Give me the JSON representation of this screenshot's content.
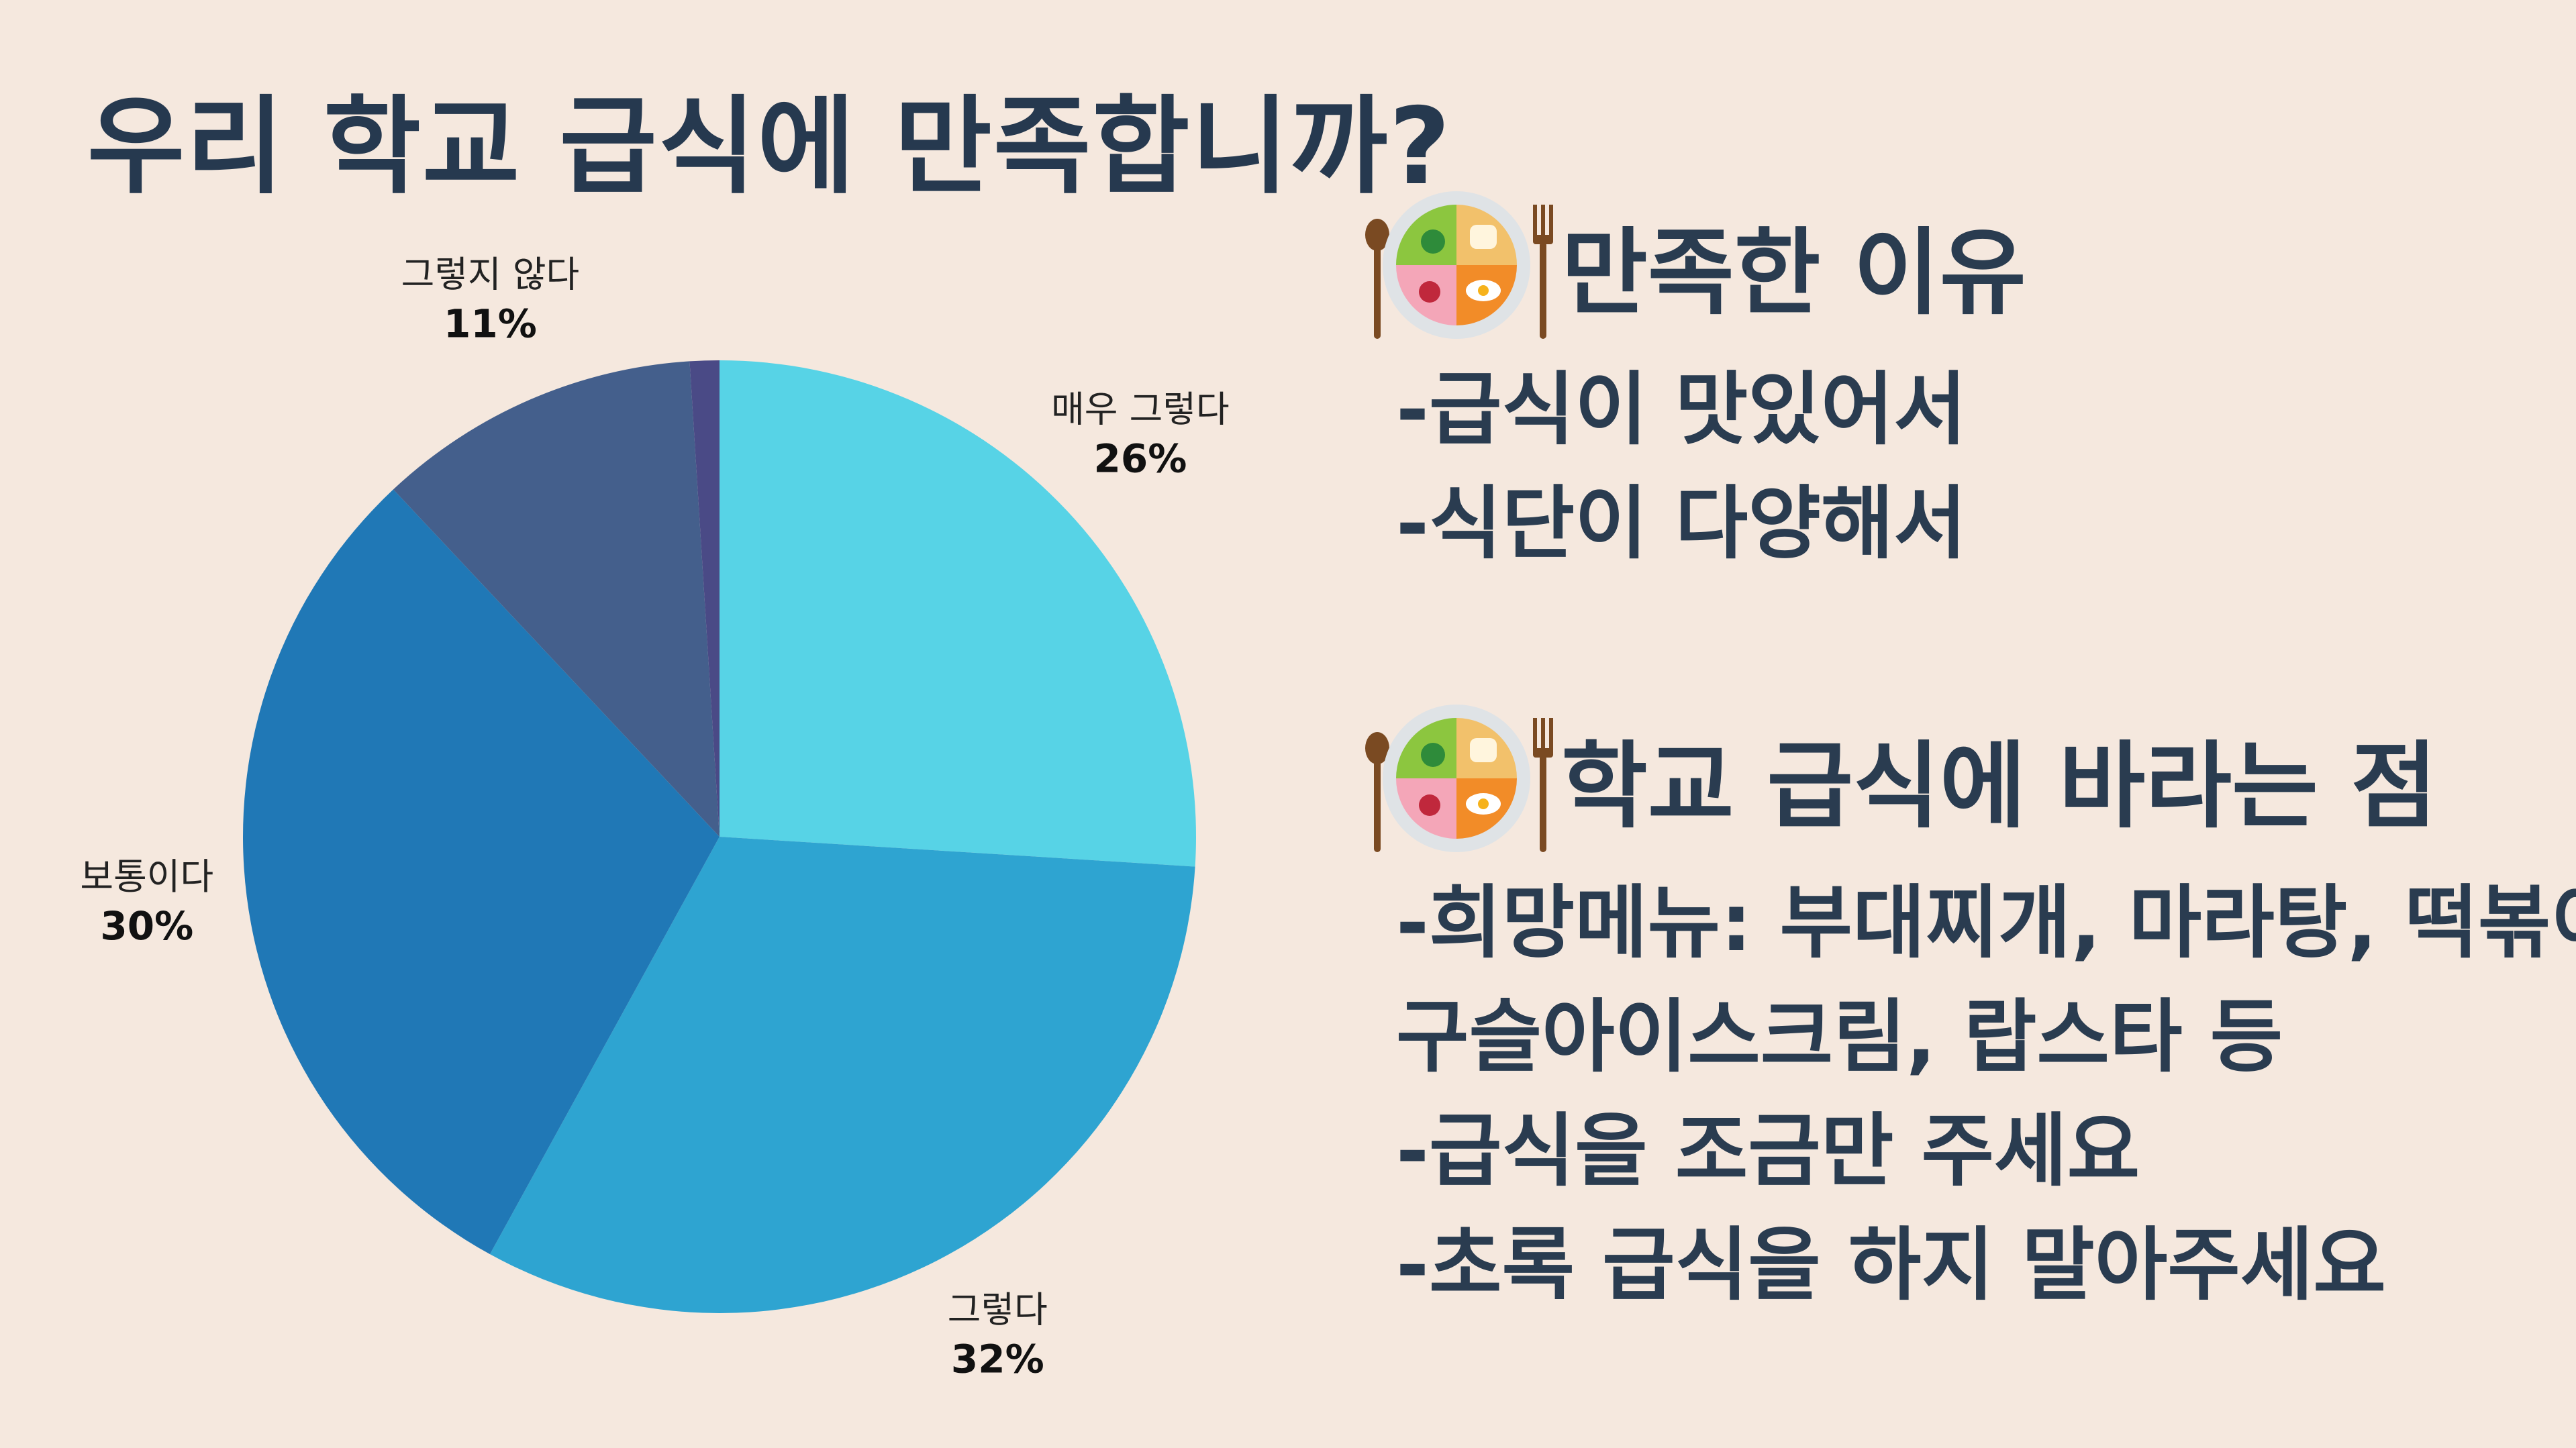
{
  "title": "우리 학교 급식에 만족합니까?",
  "chart_data": {
    "type": "pie",
    "title": "",
    "slices": [
      {
        "label": "매우 그렇다",
        "value": 26,
        "value_label": "26%",
        "color": "#57d3e6"
      },
      {
        "label": "그렇다",
        "value": 32,
        "value_label": "32%",
        "color": "#2ea4d1"
      },
      {
        "label": "보통이다",
        "value": 30,
        "value_label": "30%",
        "color": "#2078b6"
      },
      {
        "label": "그렇지 않다",
        "value": 11,
        "value_label": "11%",
        "color": "#445f8c"
      },
      {
        "label": "",
        "value": 1,
        "value_label": "",
        "color": "#4a4a86"
      }
    ],
    "start_angle_deg": 0,
    "direction": "clockwise",
    "legend": "none"
  },
  "reasons": {
    "heading": "만족한 이유",
    "icon": "meal-plate-icon",
    "items": [
      "-급식이 맛있어서",
      "-식단이 다양해서"
    ]
  },
  "wishes": {
    "heading": "학교 급식에 바라는 점",
    "icon": "meal-plate-icon",
    "items": [
      "-희망메뉴: 부대찌개, 마라탕, 떡볶이,",
      "구슬아이스크림, 랍스타 등",
      "-급식을 조금만 주세요",
      "-초록 급식을 하지 말아주세요"
    ]
  }
}
